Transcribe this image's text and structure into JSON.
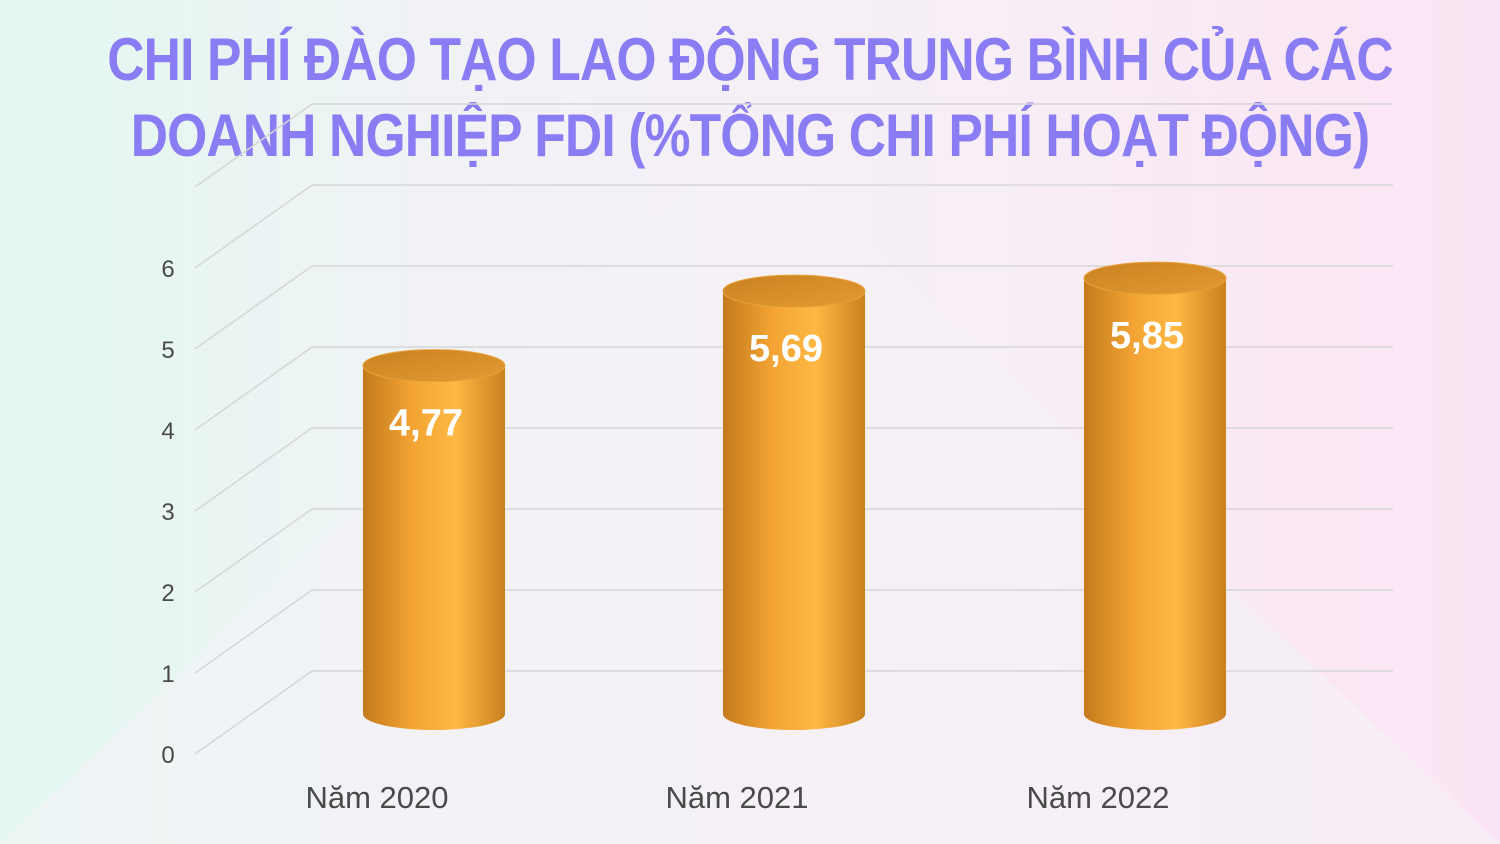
{
  "chart_data": {
    "type": "bar",
    "title_lines": [
      "CHI PHÍ ĐÀO TẠO LAO ĐỘNG TRUNG BÌNH CỦA CÁC",
      "DOANH NGHIỆP FDI (%TỔNG CHI PHÍ HOẠT ĐỘNG)"
    ],
    "categories": [
      "Năm 2020",
      "Năm 2021",
      "Năm 2022"
    ],
    "values": [
      4.77,
      5.69,
      5.85
    ],
    "data_labels": [
      "4,77",
      "5,69",
      "5,85"
    ],
    "y_ticks": [
      "0",
      "1",
      "2",
      "3",
      "4",
      "5",
      "6"
    ],
    "ylim": [
      0,
      7
    ],
    "grid": true,
    "legend": "none",
    "colors": {
      "bar_dark": "#c97d1e",
      "bar_light": "#ffb43c",
      "bar_top": "#d28a27",
      "title": "#8a7cf2",
      "data_label": "#ffffff",
      "axis_text": "#4a4a4a",
      "grid": "#d6d6d6"
    }
  }
}
